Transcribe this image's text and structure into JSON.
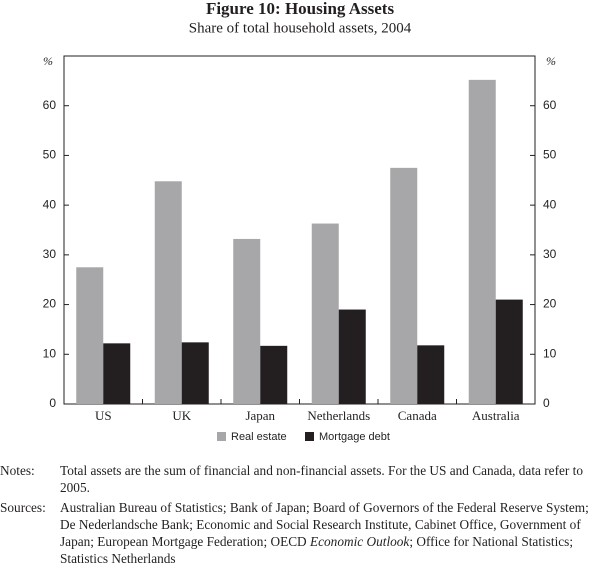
{
  "chart_data": {
    "type": "bar",
    "title": "Figure 10: Housing Assets",
    "subtitle": "Share of total household assets, 2004",
    "y_unit": "%",
    "categories": [
      "US",
      "UK",
      "Japan",
      "Netherlands",
      "Canada",
      "Australia"
    ],
    "series": [
      {
        "name": "Real estate",
        "color": "#a7a7a9",
        "values": [
          27.5,
          44.8,
          33.2,
          36.3,
          47.5,
          65.2
        ]
      },
      {
        "name": "Mortgage debt",
        "color": "#231f20",
        "values": [
          12.2,
          12.4,
          11.7,
          19,
          11.8,
          21
        ]
      }
    ],
    "ylim": [
      0,
      70
    ],
    "yticks": [
      0,
      10,
      20,
      30,
      40,
      50,
      60
    ],
    "y2lim": [
      0,
      70
    ],
    "y2ticks": [
      0,
      10,
      20,
      30,
      40,
      50,
      60
    ],
    "legend": "bottom"
  },
  "notes": {
    "label": "Notes:",
    "text": "Total assets are the sum of financial and non-financial assets. For the US and Canada, data refer to 2005."
  },
  "sources": {
    "label": "Sources:",
    "text": [
      "Australian Bureau of Statistics; Bank of Japan; Board of Governors of the Federal Reserve System; De Nederlandsche Bank; Economic and Social Research Institute, Cabinet Office, Government of Japan; European Mortgage Federation; OECD ",
      "Economic Outlook",
      "; Office for National Statistics; Statistics Netherlands"
    ]
  }
}
